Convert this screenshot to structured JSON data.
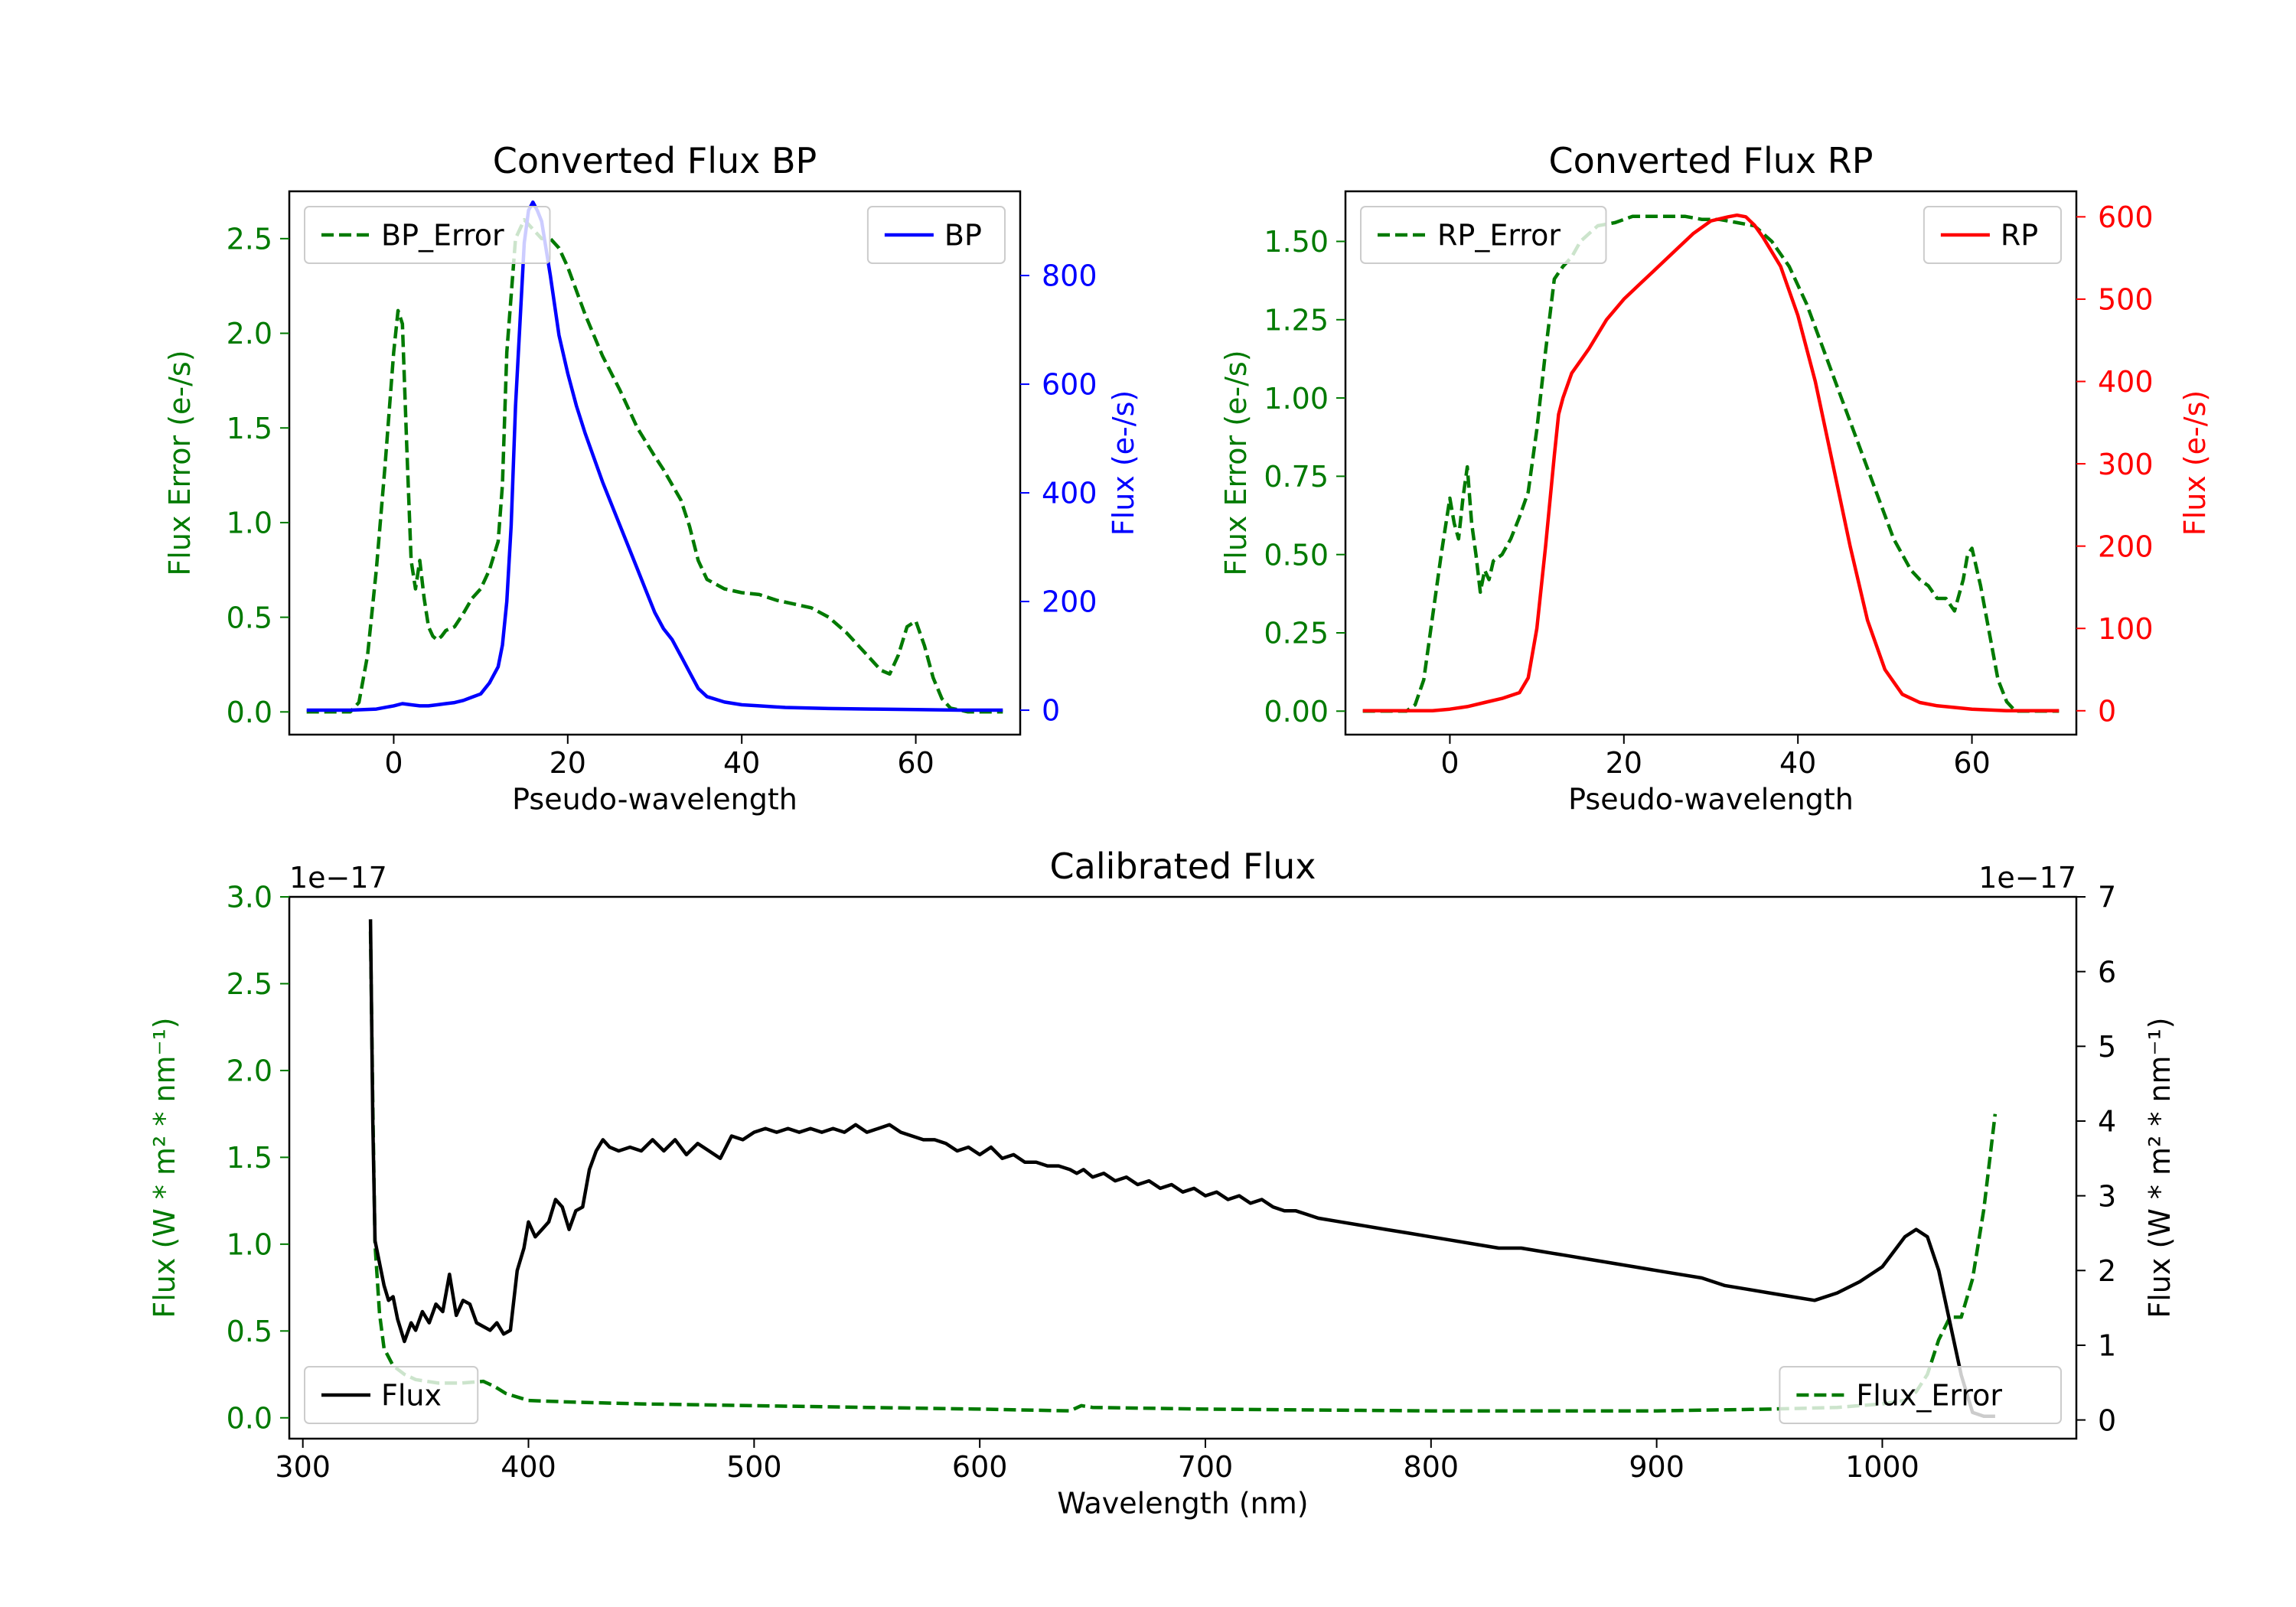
{
  "colors": {
    "error": "#007a00",
    "bp": "#0000ff",
    "rp": "#ff0000",
    "flux": "#000000"
  },
  "chart_data": [
    {
      "id": "bp",
      "type": "line",
      "title": "Converted Flux BP",
      "xlabel": "Pseudo-wavelength",
      "ylabel_left": "Flux Error (e-/s)",
      "ylabel_right": "Flux (e-/s)",
      "xlim": [
        -12,
        72
      ],
      "ylim_left": [
        -0.12,
        2.75
      ],
      "ylim_right": [
        -45,
        955
      ],
      "xticks": [
        0,
        20,
        40,
        60
      ],
      "yticks_left": [
        0.0,
        0.5,
        1.0,
        1.5,
        2.0,
        2.5
      ],
      "yticks_right": [
        0,
        200,
        400,
        600,
        800
      ],
      "ytick_labels_left": [
        "0.0",
        "0.5",
        "1.0",
        "1.5",
        "2.0",
        "2.5"
      ],
      "ytick_labels_right": [
        "0",
        "200",
        "400",
        "600",
        "800"
      ],
      "legend_left": {
        "label": "BP_Error",
        "placement": "upper-left"
      },
      "legend_right": {
        "label": "BP",
        "placement": "upper-right"
      },
      "series": [
        {
          "name": "BP_Error",
          "axis": "left",
          "style": "dashed",
          "color": "error",
          "x": [
            -10,
            -5,
            -4,
            -3,
            -2,
            -1,
            0,
            0.5,
            1,
            1.5,
            2,
            2.5,
            3,
            3.5,
            4,
            4.5,
            5,
            5.5,
            6,
            7,
            8,
            9,
            10,
            11,
            12,
            12.5,
            13,
            14,
            15,
            16,
            17,
            18,
            19,
            20,
            22,
            24,
            26,
            28,
            30,
            31,
            32,
            33,
            34,
            35,
            36,
            38,
            40,
            42,
            44,
            46,
            48,
            50,
            52,
            54,
            56,
            57,
            58,
            59,
            60,
            61,
            62,
            63,
            64,
            65,
            66,
            70
          ],
          "y": [
            0,
            0,
            0.05,
            0.3,
            0.75,
            1.3,
            1.9,
            2.12,
            2.05,
            1.4,
            0.8,
            0.65,
            0.8,
            0.6,
            0.45,
            0.4,
            0.38,
            0.4,
            0.43,
            0.45,
            0.52,
            0.6,
            0.65,
            0.75,
            0.9,
            1.2,
            1.9,
            2.5,
            2.6,
            2.55,
            2.5,
            2.5,
            2.45,
            2.35,
            2.1,
            1.88,
            1.7,
            1.5,
            1.35,
            1.28,
            1.2,
            1.12,
            0.98,
            0.8,
            0.7,
            0.65,
            0.63,
            0.62,
            0.59,
            0.57,
            0.55,
            0.5,
            0.42,
            0.32,
            0.22,
            0.2,
            0.3,
            0.45,
            0.48,
            0.35,
            0.18,
            0.07,
            0.02,
            0.01,
            0,
            0
          ]
        },
        {
          "name": "BP",
          "axis": "right",
          "style": "solid",
          "color": "bp",
          "x": [
            -10,
            -5,
            -2,
            0,
            1,
            2,
            3,
            4,
            5,
            6,
            7,
            8,
            9,
            10,
            11,
            12,
            12.5,
            13,
            13.5,
            14,
            15,
            15.5,
            16,
            16.5,
            17,
            18,
            19,
            20,
            21,
            22,
            23,
            24,
            25,
            26,
            27,
            28,
            29,
            30,
            31,
            32,
            33,
            34,
            35,
            36,
            38,
            40,
            42,
            45,
            50,
            55,
            60,
            65,
            70
          ],
          "y": [
            0,
            0,
            2,
            8,
            12,
            10,
            8,
            8,
            10,
            12,
            14,
            18,
            24,
            30,
            50,
            80,
            120,
            200,
            340,
            560,
            860,
            920,
            935,
            920,
            900,
            800,
            690,
            620,
            560,
            510,
            465,
            420,
            380,
            340,
            300,
            260,
            220,
            180,
            150,
            130,
            100,
            70,
            40,
            25,
            15,
            10,
            8,
            5,
            3,
            2,
            1,
            0,
            0
          ]
        }
      ]
    },
    {
      "id": "rp",
      "type": "line",
      "title": "Converted Flux RP",
      "xlabel": "Pseudo-wavelength",
      "ylabel_left": "Flux Error (e-/s)",
      "ylabel_right": "Flux (e-/s)",
      "xlim": [
        -12,
        72
      ],
      "ylim_left": [
        -0.075,
        1.66
      ],
      "ylim_right": [
        -29,
        631
      ],
      "xticks": [
        0,
        20,
        40,
        60
      ],
      "yticks_left": [
        0.0,
        0.25,
        0.5,
        0.75,
        1.0,
        1.25,
        1.5
      ],
      "yticks_right": [
        0,
        100,
        200,
        300,
        400,
        500,
        600
      ],
      "ytick_labels_left": [
        "0.00",
        "0.25",
        "0.50",
        "0.75",
        "1.00",
        "1.25",
        "1.50"
      ],
      "ytick_labels_right": [
        "0",
        "100",
        "200",
        "300",
        "400",
        "500",
        "600"
      ],
      "legend_left": {
        "label": "RP_Error",
        "placement": "upper-left"
      },
      "legend_right": {
        "label": "RP",
        "placement": "upper-right"
      },
      "series": [
        {
          "name": "RP_Error",
          "axis": "left",
          "style": "dashed",
          "color": "error",
          "x": [
            -10,
            -5,
            -4,
            -3,
            -2,
            -1,
            0,
            0.5,
            1,
            1.5,
            2,
            2.5,
            3,
            3.5,
            4,
            4.5,
            5,
            6,
            7,
            8,
            9,
            10,
            11,
            12,
            13,
            14,
            15,
            17,
            19,
            21,
            23,
            25,
            27,
            29,
            31,
            33,
            35,
            37,
            39,
            41,
            43,
            45,
            47,
            49,
            51,
            53,
            54,
            55,
            56,
            57,
            58,
            59,
            59.5,
            60,
            61,
            62,
            63,
            64,
            65,
            66,
            70
          ],
          "y": [
            0,
            0,
            0.02,
            0.1,
            0.3,
            0.5,
            0.68,
            0.6,
            0.55,
            0.68,
            0.78,
            0.6,
            0.5,
            0.38,
            0.45,
            0.42,
            0.48,
            0.5,
            0.55,
            0.62,
            0.7,
            0.9,
            1.15,
            1.38,
            1.42,
            1.45,
            1.5,
            1.55,
            1.56,
            1.58,
            1.58,
            1.58,
            1.58,
            1.57,
            1.57,
            1.56,
            1.55,
            1.5,
            1.42,
            1.3,
            1.15,
            1.0,
            0.85,
            0.7,
            0.55,
            0.45,
            0.42,
            0.4,
            0.36,
            0.36,
            0.32,
            0.42,
            0.5,
            0.52,
            0.4,
            0.25,
            0.1,
            0.03,
            0,
            0,
            0
          ]
        },
        {
          "name": "RP",
          "axis": "right",
          "style": "solid",
          "color": "rp",
          "x": [
            -10,
            -2,
            0,
            2,
            4,
            6,
            8,
            9,
            10,
            11,
            12,
            12.5,
            13,
            14,
            15,
            16,
            18,
            20,
            22,
            24,
            26,
            28,
            30,
            32,
            33,
            34,
            35,
            36,
            38,
            40,
            42,
            44,
            46,
            48,
            50,
            52,
            54,
            56,
            58,
            60,
            62,
            64,
            70
          ],
          "y": [
            0,
            0,
            2,
            5,
            10,
            15,
            22,
            40,
            100,
            200,
            310,
            360,
            380,
            410,
            425,
            440,
            475,
            500,
            520,
            540,
            560,
            580,
            595,
            600,
            602,
            600,
            590,
            575,
            540,
            480,
            400,
            300,
            200,
            110,
            50,
            20,
            10,
            6,
            4,
            2,
            1,
            0,
            0
          ]
        }
      ]
    },
    {
      "id": "cal",
      "type": "line",
      "title": "Calibrated Flux",
      "xlabel": "Wavelength (nm)",
      "ylabel_left": "Flux (W * m² * nm⁻¹)",
      "ylabel_right": "Flux (W * m² * nm⁻¹)",
      "offset_left": "1e−17",
      "offset_right": "1e−17",
      "xlim": [
        294,
        1086
      ],
      "ylim_left": [
        -0.12,
        3.0
      ],
      "ylim_right": [
        -0.25,
        7.0
      ],
      "xticks": [
        300,
        400,
        500,
        600,
        700,
        800,
        900,
        1000
      ],
      "yticks_left": [
        0.0,
        0.5,
        1.0,
        1.5,
        2.0,
        2.5,
        3.0
      ],
      "yticks_right": [
        0,
        1,
        2,
        3,
        4,
        5,
        6,
        7
      ],
      "ytick_labels_left": [
        "0.0",
        "0.5",
        "1.0",
        "1.5",
        "2.0",
        "2.5",
        "3.0"
      ],
      "ytick_labels_right": [
        "0",
        "1",
        "2",
        "3",
        "4",
        "5",
        "6",
        "7"
      ],
      "legend_left": {
        "label": "Flux",
        "placement": "lower-left"
      },
      "legend_right": {
        "label": "Flux_Error",
        "placement": "lower-right"
      },
      "series": [
        {
          "name": "Flux_Error",
          "axis": "left",
          "style": "dashed",
          "color": "error",
          "x": [
            330,
            331,
            332,
            334,
            336,
            340,
            345,
            350,
            360,
            370,
            380,
            385,
            390,
            400,
            420,
            450,
            500,
            550,
            600,
            640,
            645,
            650,
            700,
            750,
            800,
            850,
            900,
            950,
            980,
            1000,
            1010,
            1015,
            1020,
            1025,
            1030,
            1035,
            1040,
            1045,
            1050
          ],
          "y": [
            2.8,
            1.8,
            1.0,
            0.6,
            0.4,
            0.3,
            0.25,
            0.22,
            0.2,
            0.2,
            0.21,
            0.18,
            0.14,
            0.1,
            0.09,
            0.08,
            0.07,
            0.06,
            0.05,
            0.04,
            0.07,
            0.06,
            0.05,
            0.045,
            0.04,
            0.04,
            0.04,
            0.05,
            0.06,
            0.08,
            0.1,
            0.15,
            0.25,
            0.45,
            0.58,
            0.58,
            0.8,
            1.2,
            1.75
          ]
        },
        {
          "name": "Flux",
          "axis": "right",
          "style": "solid",
          "color": "flux",
          "x": [
            330,
            331,
            332,
            334,
            336,
            338,
            340,
            342,
            345,
            348,
            350,
            353,
            356,
            359,
            362,
            365,
            368,
            371,
            374,
            377,
            380,
            383,
            386,
            389,
            392,
            395,
            398,
            400,
            403,
            406,
            409,
            412,
            415,
            418,
            421,
            424,
            427,
            430,
            433,
            436,
            440,
            445,
            450,
            455,
            460,
            465,
            470,
            475,
            480,
            485,
            490,
            495,
            500,
            505,
            510,
            515,
            520,
            525,
            530,
            535,
            540,
            545,
            550,
            555,
            560,
            565,
            570,
            575,
            580,
            585,
            590,
            595,
            600,
            605,
            610,
            615,
            620,
            625,
            630,
            635,
            640,
            643,
            646,
            650,
            655,
            660,
            665,
            670,
            675,
            680,
            685,
            690,
            695,
            700,
            705,
            710,
            715,
            720,
            725,
            730,
            735,
            740,
            745,
            750,
            760,
            770,
            780,
            790,
            800,
            810,
            820,
            830,
            840,
            850,
            860,
            870,
            880,
            890,
            900,
            910,
            920,
            930,
            940,
            950,
            960,
            970,
            980,
            990,
            1000,
            1005,
            1010,
            1015,
            1020,
            1025,
            1030,
            1035,
            1040,
            1045,
            1050
          ],
          "y": [
            6.7,
            4.0,
            2.4,
            2.1,
            1.8,
            1.6,
            1.65,
            1.35,
            1.05,
            1.3,
            1.2,
            1.45,
            1.3,
            1.55,
            1.45,
            1.95,
            1.4,
            1.6,
            1.55,
            1.3,
            1.25,
            1.2,
            1.3,
            1.15,
            1.2,
            2.0,
            2.3,
            2.65,
            2.45,
            2.55,
            2.65,
            2.95,
            2.85,
            2.55,
            2.8,
            2.85,
            3.35,
            3.6,
            3.75,
            3.65,
            3.6,
            3.65,
            3.6,
            3.75,
            3.6,
            3.75,
            3.55,
            3.7,
            3.6,
            3.5,
            3.8,
            3.75,
            3.85,
            3.9,
            3.85,
            3.9,
            3.85,
            3.9,
            3.85,
            3.9,
            3.85,
            3.95,
            3.85,
            3.9,
            3.95,
            3.85,
            3.8,
            3.75,
            3.75,
            3.7,
            3.6,
            3.65,
            3.55,
            3.65,
            3.5,
            3.55,
            3.45,
            3.45,
            3.4,
            3.4,
            3.35,
            3.3,
            3.35,
            3.25,
            3.3,
            3.2,
            3.25,
            3.15,
            3.2,
            3.1,
            3.15,
            3.05,
            3.1,
            3.0,
            3.05,
            2.95,
            3.0,
            2.9,
            2.95,
            2.85,
            2.8,
            2.8,
            2.75,
            2.7,
            2.65,
            2.6,
            2.55,
            2.5,
            2.45,
            2.4,
            2.35,
            2.3,
            2.3,
            2.25,
            2.2,
            2.15,
            2.1,
            2.05,
            2.0,
            1.95,
            1.9,
            1.8,
            1.75,
            1.7,
            1.65,
            1.6,
            1.7,
            1.85,
            2.05,
            2.25,
            2.45,
            2.55,
            2.45,
            2.0,
            1.3,
            0.6,
            0.1,
            0.05,
            0.05
          ]
        }
      ]
    }
  ]
}
